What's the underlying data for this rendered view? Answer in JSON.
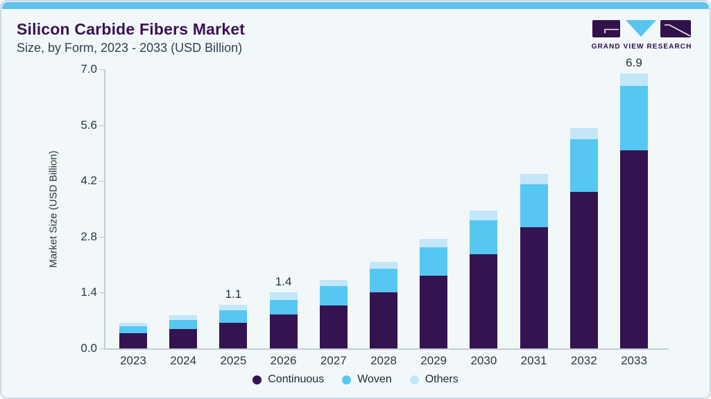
{
  "header": {
    "title": "Silicon Carbide Fibers Market",
    "subtitle": "Size, by Form, 2023 - 2033 (USD Billion)"
  },
  "logo": {
    "text": "GRAND VIEW RESEARCH",
    "purple": "#31124a",
    "blue": "#55c6ee"
  },
  "chart_data": {
    "type": "bar",
    "stacked": true,
    "title": "Silicon Carbide Fibers Market Size, by Form, 2023 - 2033 (USD Billion)",
    "categories": [
      "2023",
      "2024",
      "2025",
      "2026",
      "2027",
      "2028",
      "2029",
      "2030",
      "2031",
      "2032",
      "2033"
    ],
    "series": [
      {
        "name": "Continuous",
        "color": "#331450",
        "values": [
          0.38,
          0.48,
          0.64,
          0.85,
          1.07,
          1.4,
          1.82,
          2.36,
          3.04,
          3.93,
          4.97
        ]
      },
      {
        "name": "Woven",
        "color": "#56c7f2",
        "values": [
          0.17,
          0.24,
          0.31,
          0.37,
          0.49,
          0.59,
          0.72,
          0.86,
          1.08,
          1.31,
          1.62
        ]
      },
      {
        "name": "Others",
        "color": "#c3e6f8",
        "values": [
          0.1,
          0.12,
          0.15,
          0.18,
          0.16,
          0.18,
          0.2,
          0.23,
          0.25,
          0.29,
          0.31
        ]
      }
    ],
    "totals": [
      0.65,
      0.84,
      1.1,
      1.4,
      1.72,
      2.17,
      2.74,
      3.45,
      4.37,
      5.53,
      6.9
    ],
    "bar_labels": [
      {
        "category": "2025",
        "text": "1.1"
      },
      {
        "category": "2026",
        "text": "1.4"
      },
      {
        "category": "2033",
        "text": "6.9"
      }
    ],
    "xlabel": "",
    "ylabel": "Market Size (USD Billion)",
    "ylim": [
      0,
      7.0
    ],
    "yticks": [
      "0.0",
      "1.4",
      "2.8",
      "4.2",
      "5.6",
      "7.0"
    ],
    "grid": false,
    "legend_position": "bottom"
  }
}
